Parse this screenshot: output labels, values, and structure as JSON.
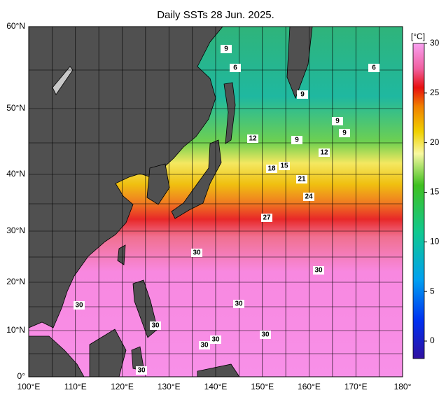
{
  "header": {
    "title": "Daily SSTs 28 Jun. 2025."
  },
  "lat_labels": [
    "60°N",
    "50°N",
    "40°N",
    "30°N",
    "20°N",
    "10°N",
    "0°"
  ],
  "lon_labels": [
    "100°E",
    "110°E",
    "120°E",
    "130°E",
    "140°E",
    "150°E",
    "160°E",
    "170°E",
    "180°"
  ],
  "colorbar": {
    "unit": "[°C]",
    "ticks": [
      30,
      25,
      20,
      15,
      10,
      5,
      0
    ]
  },
  "contour_labels": [
    "9",
    "6",
    "6",
    "9",
    "9",
    "9",
    "9",
    "12",
    "12",
    "18",
    "15",
    "21",
    "24",
    "27",
    "30",
    "30",
    "30",
    "30",
    "30",
    "30",
    "30",
    "30",
    "30"
  ]
}
